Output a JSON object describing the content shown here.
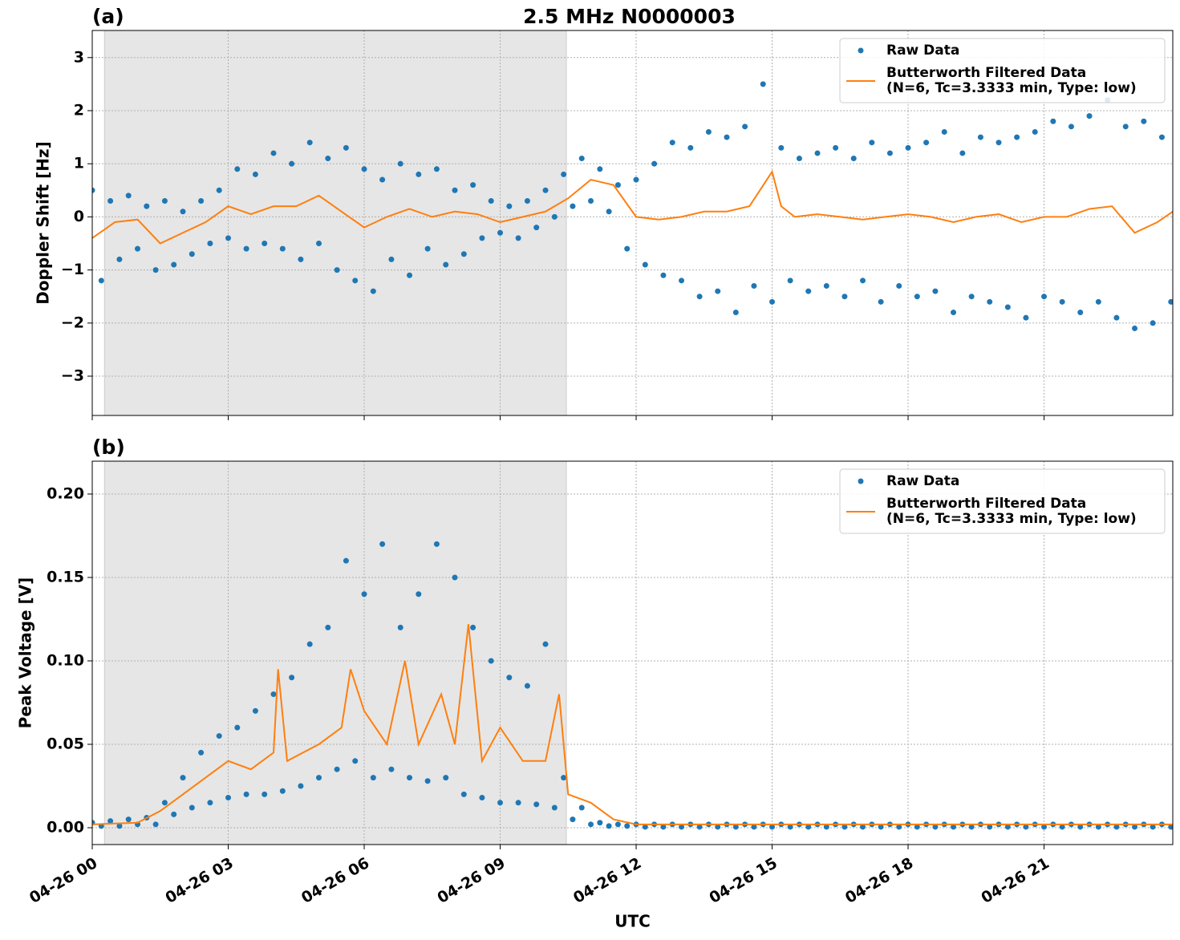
{
  "chart_data": [
    {
      "type": "scatter-line",
      "title": "2.5 MHz N0000003",
      "panel_label": "(a)",
      "y_label": "Doppler Shift [Hz]",
      "xlim": [
        0,
        23.84
      ],
      "xticks": [
        0,
        3,
        6,
        9,
        12,
        15,
        18,
        21
      ],
      "ylim": [
        -3.74,
        3.51
      ],
      "yticks": [
        {
          "value": -3,
          "label": "−3"
        },
        {
          "value": -2,
          "label": "−2"
        },
        {
          "value": -1,
          "label": "−1"
        },
        0,
        1,
        2,
        3
      ],
      "grid": true,
      "legend": "upper right",
      "shaded_span": [
        0.27,
        10.46
      ],
      "series": [
        {
          "name": "Raw Data",
          "color": "#1f77b4",
          "x": [
            0,
            0.2,
            0.4,
            0.6,
            0.8,
            1,
            1.2,
            1.4,
            1.6,
            1.8,
            2,
            2.2,
            2.4,
            2.6,
            2.8,
            3,
            3.2,
            3.4,
            3.6,
            3.8,
            4,
            4.2,
            4.4,
            4.6,
            4.8,
            5,
            5.2,
            5.4,
            5.6,
            5.8,
            6,
            6.2,
            6.4,
            6.6,
            6.8,
            7,
            7.2,
            7.4,
            7.6,
            7.8,
            8,
            8.2,
            8.4,
            8.6,
            8.8,
            9,
            9.2,
            9.4,
            9.6,
            9.8,
            10,
            10.2,
            10.4,
            10.6,
            10.8,
            11,
            11.2,
            11.4,
            11.6,
            11.8,
            12,
            12.2,
            12.4,
            12.6,
            12.8,
            13,
            13.2,
            13.4,
            13.6,
            13.8,
            14,
            14.2,
            14.4,
            14.6,
            14.8,
            15,
            15.2,
            15.4,
            15.6,
            15.8,
            16,
            16.2,
            16.4,
            16.6,
            16.8,
            17,
            17.2,
            17.4,
            17.6,
            17.8,
            18,
            18.2,
            18.4,
            18.6,
            18.8,
            19,
            19.2,
            19.4,
            19.6,
            19.8,
            20,
            20.2,
            20.4,
            20.6,
            20.8,
            21,
            21.2,
            21.4,
            21.6,
            21.8,
            22,
            22.2,
            22.4,
            22.6,
            22.8,
            23,
            23.2,
            23.4,
            23.6,
            23.8
          ],
          "values": [
            0.5,
            -1.2,
            0.3,
            -0.8,
            0.4,
            -0.6,
            0.2,
            -1.0,
            0.3,
            -0.9,
            0.1,
            -0.7,
            0.3,
            -0.5,
            0.5,
            -0.4,
            0.9,
            -0.6,
            0.8,
            -0.5,
            1.2,
            -0.6,
            1.0,
            -0.8,
            1.4,
            -0.5,
            1.1,
            -1.0,
            1.3,
            -1.2,
            0.9,
            -1.4,
            0.7,
            -0.8,
            1.0,
            -1.1,
            0.8,
            -0.6,
            0.9,
            -0.9,
            0.5,
            -0.7,
            0.6,
            -0.4,
            0.3,
            -0.3,
            0.2,
            -0.4,
            0.3,
            -0.2,
            0.5,
            0.0,
            0.8,
            0.2,
            1.1,
            0.3,
            0.9,
            0.1,
            0.6,
            -0.6,
            0.7,
            -0.9,
            1.0,
            -1.1,
            1.4,
            -1.2,
            1.3,
            -1.5,
            1.6,
            -1.4,
            1.5,
            -1.8,
            1.7,
            -1.3,
            2.5,
            -1.6,
            1.3,
            -1.2,
            1.1,
            -1.4,
            1.2,
            -1.3,
            1.3,
            -1.5,
            1.1,
            -1.2,
            1.4,
            -1.6,
            1.2,
            -1.3,
            1.3,
            -1.5,
            1.4,
            -1.4,
            1.6,
            -1.8,
            1.2,
            -1.5,
            1.5,
            -1.6,
            1.4,
            -1.7,
            1.5,
            -1.9,
            1.6,
            -1.5,
            1.8,
            -1.6,
            1.7,
            -1.8,
            1.9,
            -1.6,
            2.2,
            -1.9,
            1.7,
            -2.1,
            1.8,
            -2.0,
            1.5,
            -1.6
          ]
        },
        {
          "name": "Butterworth Filtered Data\n(N=6, Tc=3.3333 min, Type: low)",
          "color": "#ff7f0e",
          "x": [
            0,
            0.5,
            1,
            1.5,
            2,
            2.5,
            3,
            3.5,
            4,
            4.5,
            5,
            5.5,
            6,
            6.5,
            7,
            7.5,
            8,
            8.5,
            9,
            9.5,
            10,
            10.5,
            11,
            11.5,
            12,
            12.5,
            13,
            13.5,
            14,
            14.5,
            15,
            15.2,
            15.5,
            16,
            16.5,
            17,
            17.5,
            18,
            18.5,
            19,
            19.5,
            20,
            20.5,
            21,
            21.5,
            22,
            22.5,
            23,
            23.5,
            23.84
          ],
          "values": [
            -0.4,
            -0.1,
            -0.05,
            -0.5,
            -0.3,
            -0.1,
            0.2,
            0.05,
            0.2,
            0.2,
            0.4,
            0.1,
            -0.2,
            0.0,
            0.15,
            0.0,
            0.1,
            0.05,
            -0.1,
            0.0,
            0.1,
            0.35,
            0.7,
            0.6,
            0.0,
            -0.05,
            0.0,
            0.1,
            0.1,
            0.2,
            0.85,
            0.2,
            0.0,
            0.05,
            0.0,
            -0.05,
            0.0,
            0.05,
            0.0,
            -0.1,
            0.0,
            0.05,
            -0.1,
            0.0,
            0.0,
            0.15,
            0.2,
            -0.3,
            -0.1,
            0.1
          ]
        }
      ]
    },
    {
      "type": "scatter-line",
      "panel_label": "(b)",
      "y_label": "Peak Voltage [V]",
      "x_label": "UTC",
      "xlim": [
        0,
        23.84
      ],
      "xticks": [
        {
          "value": 0,
          "label": "04-26 00"
        },
        {
          "value": 3,
          "label": "04-26 03"
        },
        {
          "value": 6,
          "label": "04-26 06"
        },
        {
          "value": 9,
          "label": "04-26 09"
        },
        {
          "value": 12,
          "label": "04-26 12"
        },
        {
          "value": 15,
          "label": "04-26 15"
        },
        {
          "value": 18,
          "label": "04-26 18"
        },
        {
          "value": 21,
          "label": "04-26 21"
        }
      ],
      "ylim": [
        -0.0101,
        0.2197
      ],
      "yticks": [
        {
          "value": 0,
          "label": "0.00"
        },
        {
          "value": 0.05,
          "label": "0.05"
        },
        {
          "value": 0.1,
          "label": "0.10"
        },
        {
          "value": 0.15,
          "label": "0.15"
        },
        {
          "value": 0.2,
          "label": "0.20"
        }
      ],
      "grid": true,
      "legend": "upper right",
      "shaded_span": [
        0.27,
        10.46
      ],
      "series": [
        {
          "name": "Raw Data",
          "color": "#1f77b4",
          "x": [
            0,
            0.2,
            0.4,
            0.6,
            0.8,
            1,
            1.2,
            1.4,
            1.6,
            1.8,
            2,
            2.2,
            2.4,
            2.6,
            2.8,
            3,
            3.2,
            3.4,
            3.6,
            3.8,
            4,
            4.2,
            4.4,
            4.6,
            4.8,
            5,
            5.2,
            5.4,
            5.6,
            5.8,
            6,
            6.2,
            6.4,
            6.6,
            6.8,
            7,
            7.2,
            7.4,
            7.6,
            7.8,
            8,
            8.2,
            8.4,
            8.6,
            8.8,
            9,
            9.2,
            9.4,
            9.6,
            9.8,
            10,
            10.2,
            10.4,
            10.6,
            10.8,
            11,
            11.2,
            11.4,
            11.6,
            11.8,
            12,
            12.2,
            12.4,
            12.6,
            12.8,
            13,
            13.2,
            13.4,
            13.6,
            13.8,
            14,
            14.2,
            14.4,
            14.6,
            14.8,
            15,
            15.2,
            15.4,
            15.6,
            15.8,
            16,
            16.2,
            16.4,
            16.6,
            16.8,
            17,
            17.2,
            17.4,
            17.6,
            17.8,
            18,
            18.2,
            18.4,
            18.6,
            18.8,
            19,
            19.2,
            19.4,
            19.6,
            19.8,
            20,
            20.2,
            20.4,
            20.6,
            20.8,
            21,
            21.2,
            21.4,
            21.6,
            21.8,
            22,
            22.2,
            22.4,
            22.6,
            22.8,
            23,
            23.2,
            23.4,
            23.6,
            23.8
          ],
          "values": [
            0.003,
            0.001,
            0.004,
            0.001,
            0.005,
            0.002,
            0.006,
            0.002,
            0.015,
            0.008,
            0.03,
            0.012,
            0.045,
            0.015,
            0.055,
            0.018,
            0.06,
            0.02,
            0.07,
            0.02,
            0.08,
            0.022,
            0.09,
            0.025,
            0.11,
            0.03,
            0.12,
            0.035,
            0.16,
            0.04,
            0.14,
            0.03,
            0.17,
            0.035,
            0.12,
            0.03,
            0.14,
            0.028,
            0.17,
            0.03,
            0.15,
            0.02,
            0.12,
            0.018,
            0.1,
            0.015,
            0.09,
            0.015,
            0.085,
            0.014,
            0.11,
            0.012,
            0.03,
            0.005,
            0.012,
            0.002,
            0.003,
            0.001,
            0.002,
            0.001,
            0.002,
            0.0005,
            0.002,
            0.0005,
            0.002,
            0.0005,
            0.002,
            0.0005,
            0.002,
            0.0005,
            0.002,
            0.0005,
            0.002,
            0.0005,
            0.002,
            0.0005,
            0.002,
            0.0005,
            0.002,
            0.0005,
            0.002,
            0.0005,
            0.002,
            0.0005,
            0.002,
            0.0005,
            0.002,
            0.0005,
            0.002,
            0.0005,
            0.002,
            0.0005,
            0.002,
            0.0005,
            0.002,
            0.0005,
            0.002,
            0.0005,
            0.002,
            0.0005,
            0.002,
            0.0005,
            0.002,
            0.0005,
            0.002,
            0.0005,
            0.002,
            0.0005,
            0.002,
            0.0005,
            0.002,
            0.0005,
            0.002,
            0.0005,
            0.002,
            0.0005,
            0.002,
            0.0005,
            0.002,
            0.0005
          ]
        },
        {
          "name": "Butterworth Filtered Data\n(N=6, Tc=3.3333 min, Type: low)",
          "color": "#ff7f0e",
          "x": [
            0,
            1,
            1.5,
            2,
            2.5,
            3,
            3.5,
            4,
            4.1,
            4.3,
            5,
            5.5,
            5.7,
            6,
            6.5,
            6.9,
            7.2,
            7.7,
            8,
            8.3,
            8.6,
            9,
            9.5,
            10,
            10.3,
            10.5,
            11,
            11.5,
            12,
            15,
            18,
            21,
            23.84
          ],
          "values": [
            0.002,
            0.003,
            0.01,
            0.02,
            0.03,
            0.04,
            0.035,
            0.045,
            0.095,
            0.04,
            0.05,
            0.06,
            0.095,
            0.07,
            0.05,
            0.1,
            0.05,
            0.08,
            0.05,
            0.122,
            0.04,
            0.06,
            0.04,
            0.04,
            0.08,
            0.02,
            0.015,
            0.005,
            0.002,
            0.002,
            0.002,
            0.002,
            0.002
          ]
        }
      ]
    }
  ]
}
